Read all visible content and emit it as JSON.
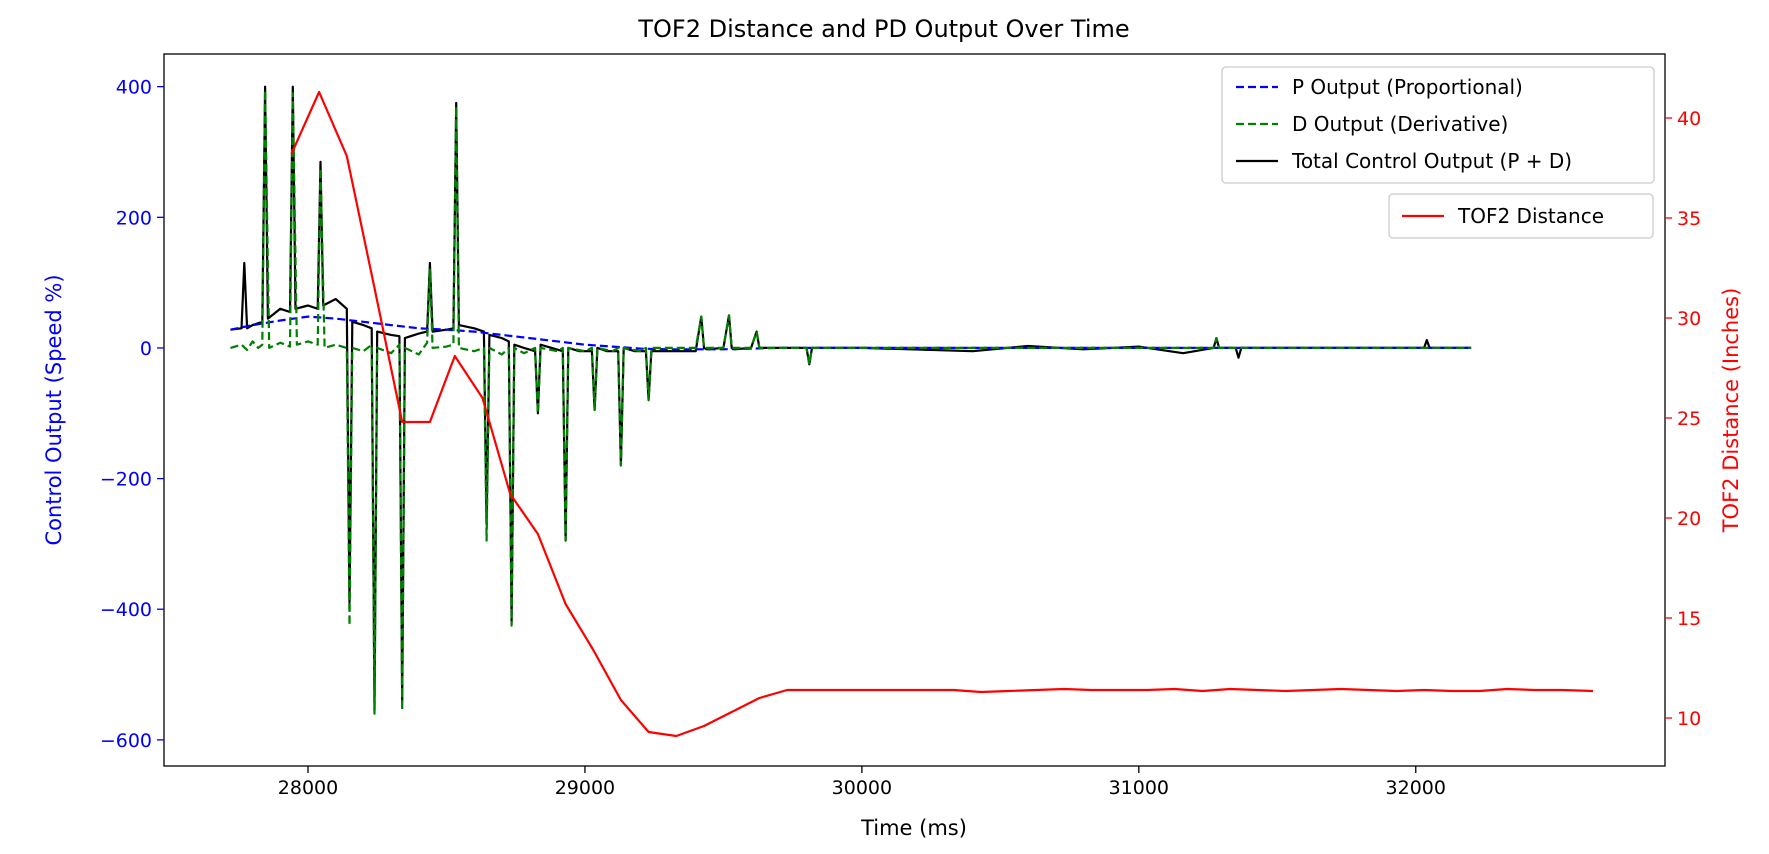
{
  "chart_data": {
    "type": "line",
    "title": "TOF2 Distance and PD Output Over Time",
    "xlabel": "Time (ms)",
    "ylabel_left": "Control Output (Speed %)",
    "ylabel_right": "TOF2 Distance (Inches)",
    "xlim": [
      27480,
      32900
    ],
    "ylim_left": [
      -640,
      450
    ],
    "ylim_right": [
      7.6,
      43.2
    ],
    "x_ticks": [
      28000,
      29000,
      30000,
      31000,
      32000
    ],
    "y_ticks_left": [
      400,
      200,
      0,
      -200,
      -400,
      -600
    ],
    "y_ticks_right": [
      10,
      15,
      20,
      25,
      30,
      35,
      40
    ],
    "grid": false,
    "colors": {
      "left_axis": "#0000ff",
      "right_axis": "#ff0000",
      "p_output": "#0000ff",
      "d_output": "#008000",
      "total_output": "#000000",
      "tof2": "#ff0000"
    },
    "legend_left": {
      "placement": "top-right",
      "entries": [
        {
          "label": "P Output (Proportional)",
          "color": "#0000ff",
          "style": "dashed"
        },
        {
          "label": "D Output (Derivative)",
          "color": "#008000",
          "style": "dashed"
        },
        {
          "label": "Total Control Output (P + D)",
          "color": "#000000",
          "style": "solid"
        }
      ]
    },
    "legend_right": {
      "placement": "upper-right",
      "entries": [
        {
          "label": "TOF2 Distance",
          "color": "#ff0000",
          "style": "solid"
        }
      ]
    },
    "series": [
      {
        "name": "P Output (Proportional)",
        "axis": "left",
        "color": "#0000ff",
        "style": "dashed",
        "x": [
          27720,
          27800,
          27900,
          28000,
          28100,
          28200,
          28300,
          28400,
          28500,
          28600,
          28700,
          28800,
          28900,
          29000,
          29100,
          29200,
          29300,
          29400,
          29500,
          29600,
          29700,
          29800,
          30000,
          31000,
          32000,
          32200
        ],
        "y": [
          28,
          35,
          42,
          48,
          45,
          40,
          35,
          30,
          28,
          25,
          20,
          15,
          10,
          5,
          2,
          -1,
          -2,
          -2,
          -2,
          -1,
          0,
          0,
          0,
          0,
          0,
          0
        ]
      },
      {
        "name": "D Output (Derivative)",
        "axis": "left",
        "color": "#008000",
        "style": "dashed",
        "x": [
          27720,
          27760,
          27780,
          27800,
          27820,
          27835,
          27845,
          27860,
          27900,
          27935,
          27945,
          27960,
          28000,
          28035,
          28045,
          28060,
          28100,
          28140,
          28150,
          28160,
          28200,
          28230,
          28240,
          28250,
          28300,
          28330,
          28340,
          28350,
          28400,
          28430,
          28440,
          28450,
          28500,
          28525,
          28535,
          28545,
          28600,
          28635,
          28645,
          28655,
          28700,
          28725,
          28735,
          28745,
          28780,
          28820,
          28830,
          28840,
          28900,
          28920,
          28930,
          28940,
          29000,
          29025,
          29035,
          29045,
          29100,
          29120,
          29130,
          29140,
          29200,
          29220,
          29230,
          29240,
          29300,
          29400,
          29420,
          29430,
          29440,
          29500,
          29520,
          29530,
          29540,
          29600,
          29620,
          29630,
          29640,
          29700,
          29800,
          29810,
          29820,
          30000,
          30500,
          31000,
          31270,
          31280,
          31290,
          31500,
          32000,
          32200
        ],
        "y": [
          0,
          5,
          -3,
          10,
          0,
          5,
          395,
          0,
          8,
          2,
          390,
          5,
          10,
          5,
          275,
          0,
          5,
          0,
          -425,
          0,
          -5,
          5,
          -560,
          0,
          -8,
          5,
          -555,
          0,
          -10,
          8,
          120,
          0,
          2,
          5,
          370,
          0,
          -5,
          0,
          -295,
          0,
          -10,
          0,
          -425,
          0,
          -8,
          0,
          -100,
          0,
          -5,
          0,
          -295,
          0,
          -5,
          0,
          -95,
          0,
          -5,
          0,
          -180,
          0,
          -5,
          0,
          -80,
          0,
          0,
          0,
          48,
          0,
          0,
          0,
          50,
          0,
          0,
          0,
          25,
          0,
          0,
          0,
          0,
          -25,
          0,
          0,
          0,
          0,
          0,
          15,
          0,
          0,
          0,
          0
        ]
      },
      {
        "name": "Total Control Output (P + D)",
        "axis": "left",
        "color": "#000000",
        "style": "solid",
        "x": [
          27720,
          27760,
          27770,
          27780,
          27800,
          27835,
          27845,
          27855,
          27900,
          27935,
          27945,
          27955,
          28000,
          28035,
          28045,
          28055,
          28100,
          28140,
          28150,
          28160,
          28200,
          28230,
          28240,
          28250,
          28300,
          28330,
          28340,
          28350,
          28400,
          28430,
          28440,
          28450,
          28500,
          28525,
          28535,
          28545,
          28600,
          28635,
          28645,
          28655,
          28700,
          28725,
          28735,
          28745,
          28780,
          28820,
          28830,
          28840,
          28880,
          28920,
          28930,
          28940,
          28980,
          29025,
          29035,
          29045,
          29080,
          29120,
          29130,
          29140,
          29180,
          29220,
          29230,
          29240,
          29300,
          29400,
          29420,
          29430,
          29440,
          29500,
          29520,
          29530,
          29540,
          29600,
          29620,
          29630,
          29640,
          29700,
          29800,
          29810,
          29820,
          30000,
          30400,
          30600,
          30800,
          31000,
          31160,
          31270,
          31280,
          31290,
          31350,
          31360,
          31370,
          31600,
          32000,
          32030,
          32040,
          32050,
          32150,
          32200
        ],
        "y": [
          28,
          30,
          130,
          30,
          35,
          40,
          400,
          45,
          60,
          55,
          400,
          60,
          65,
          60,
          285,
          65,
          75,
          60,
          -390,
          40,
          35,
          30,
          -555,
          25,
          20,
          18,
          -540,
          15,
          22,
          25,
          130,
          25,
          28,
          30,
          375,
          35,
          30,
          25,
          -270,
          20,
          15,
          10,
          -420,
          5,
          0,
          -5,
          -100,
          5,
          0,
          -5,
          -295,
          0,
          -5,
          -5,
          -95,
          0,
          -5,
          -5,
          -180,
          0,
          -5,
          -5,
          -80,
          -5,
          -5,
          -5,
          48,
          0,
          -2,
          0,
          50,
          0,
          -2,
          0,
          25,
          0,
          0,
          0,
          0,
          -25,
          0,
          0,
          -5,
          3,
          -2,
          2,
          -8,
          0,
          15,
          0,
          0,
          -15,
          0,
          0,
          0,
          0,
          12,
          0,
          0,
          0
        ]
      },
      {
        "name": "TOF2 Distance",
        "axis": "right",
        "color": "#ff0000",
        "style": "solid",
        "x": [
          27940,
          28040,
          28140,
          28240,
          28340,
          28440,
          28530,
          28630,
          28730,
          28830,
          28930,
          29030,
          29130,
          29230,
          29330,
          29430,
          29530,
          29630,
          29730,
          29830,
          29930,
          30030,
          30130,
          30230,
          30330,
          30430,
          30530,
          30630,
          30730,
          30830,
          30930,
          31030,
          31130,
          31230,
          31330,
          31430,
          31530,
          31630,
          31730,
          31830,
          31930,
          32030,
          32130,
          32230,
          32330,
          32430,
          32530,
          32640
        ],
        "y": [
          38.2,
          41.3,
          38.1,
          31.5,
          24.8,
          24.8,
          28.1,
          26.0,
          21.2,
          19.2,
          15.7,
          13.4,
          10.9,
          9.3,
          9.1,
          9.6,
          10.3,
          11.0,
          11.4,
          11.4,
          11.4,
          11.4,
          11.4,
          11.4,
          11.4,
          11.3,
          11.35,
          11.4,
          11.45,
          11.4,
          11.4,
          11.4,
          11.45,
          11.35,
          11.45,
          11.4,
          11.35,
          11.4,
          11.45,
          11.4,
          11.35,
          11.4,
          11.35,
          11.35,
          11.45,
          11.4,
          11.4,
          11.35
        ]
      }
    ]
  }
}
